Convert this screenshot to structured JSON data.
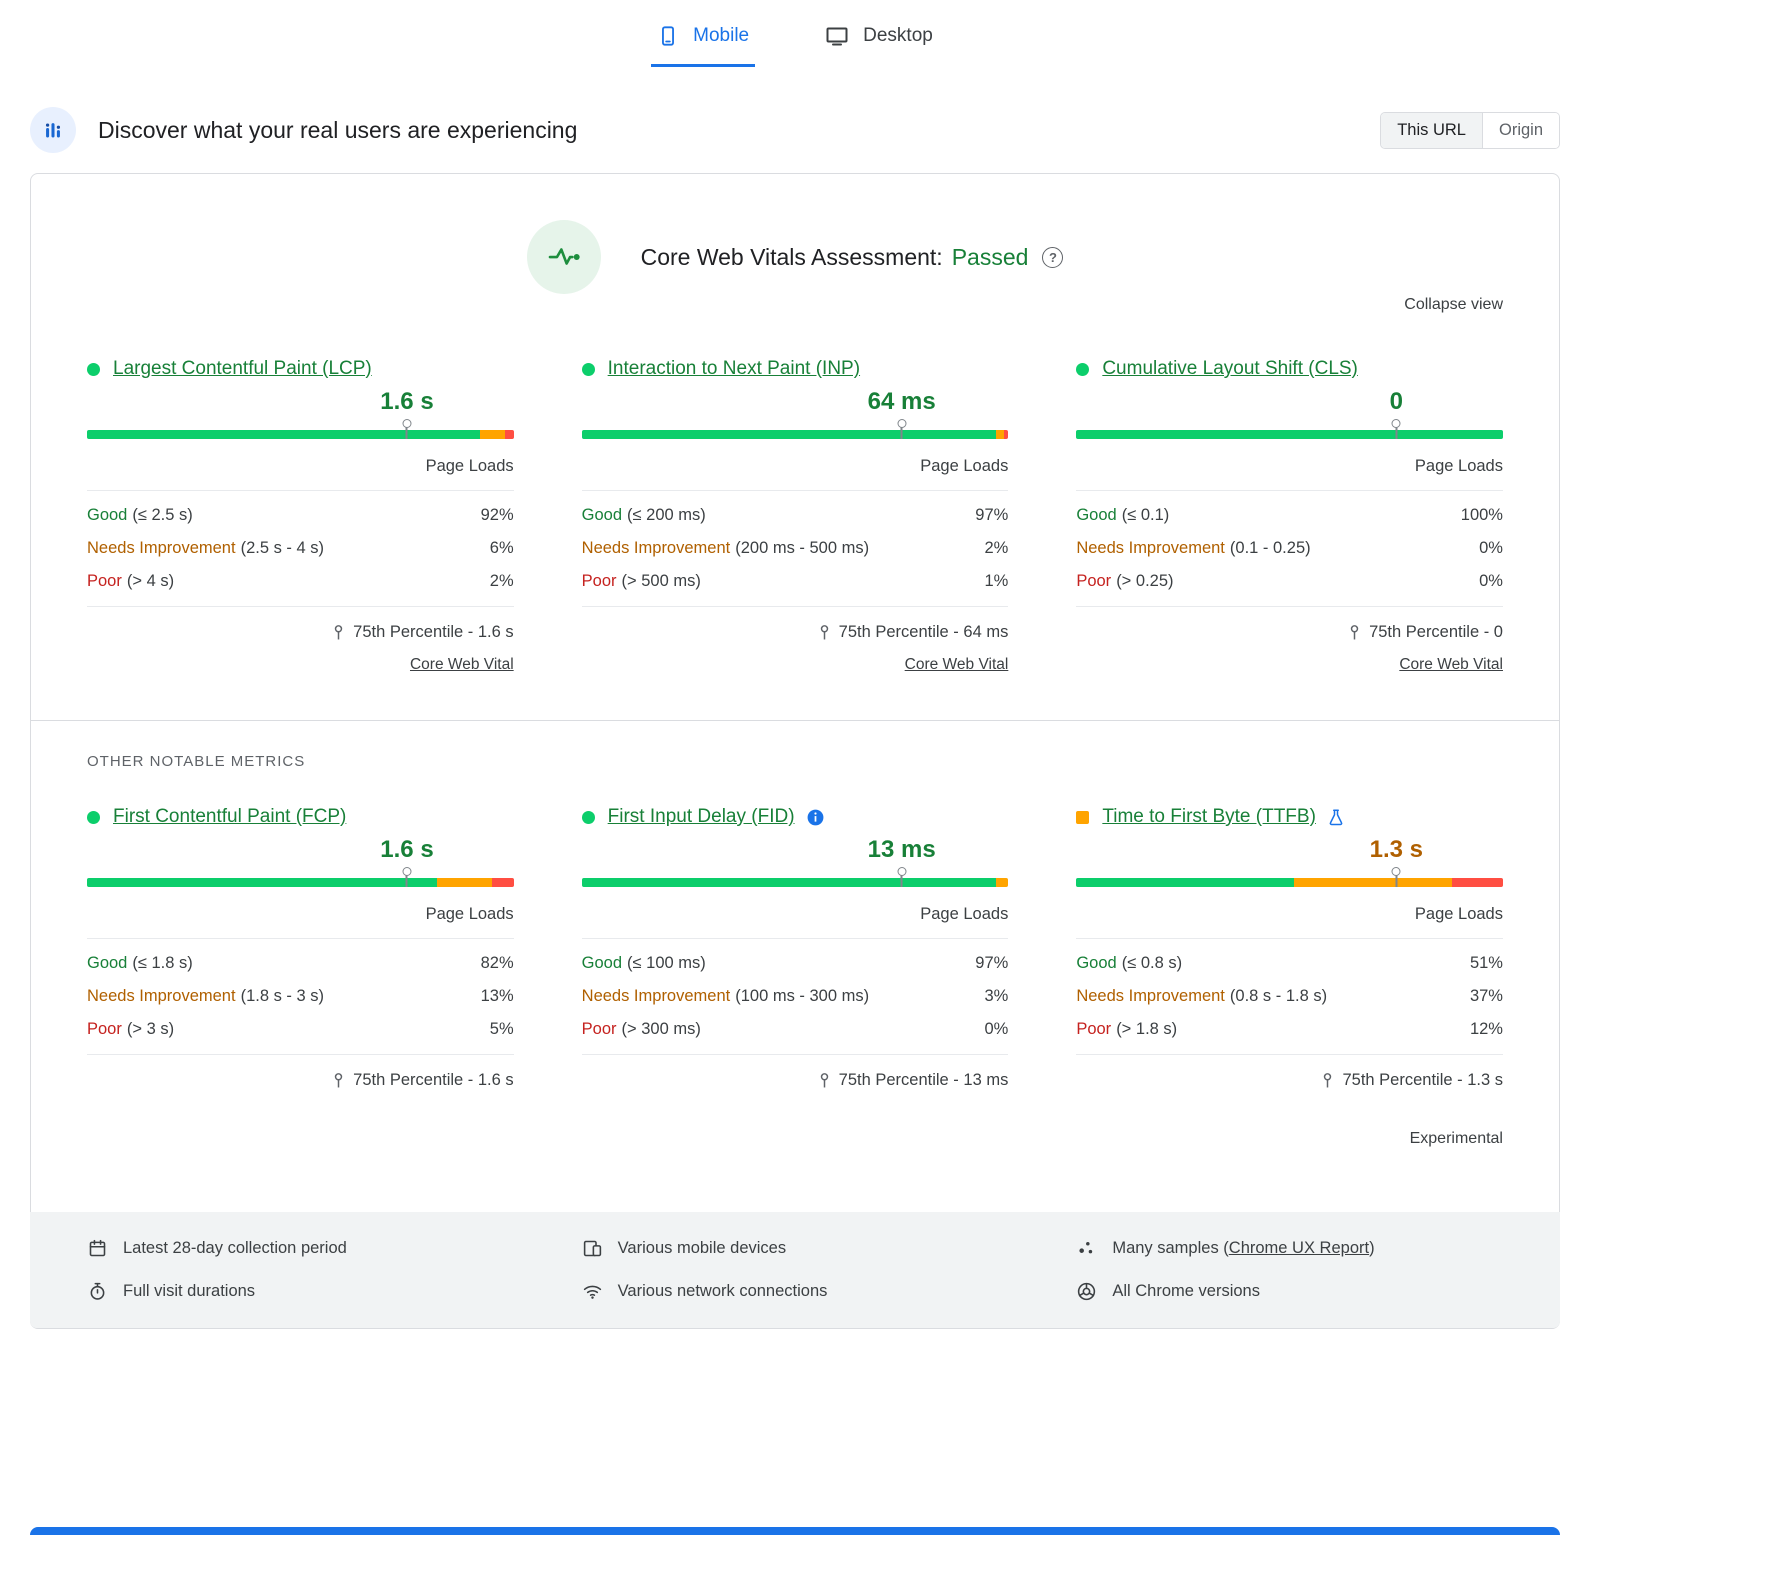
{
  "tabs": [
    {
      "label": "Mobile",
      "active": true
    },
    {
      "label": "Desktop",
      "active": false
    }
  ],
  "header": {
    "title": "Discover what your real users are experiencing",
    "scope_this_url": "This URL",
    "scope_origin": "Origin"
  },
  "assessment": {
    "title": "Core Web Vitals Assessment:",
    "status": "Passed",
    "collapse_label": "Collapse view",
    "section_label": "OTHER NOTABLE METRICS"
  },
  "shared": {
    "page_loads": "Page Loads",
    "core_web_vital": "Core Web Vital",
    "experimental": "Experimental"
  },
  "icons": {
    "help_glyph": "?"
  },
  "colors": {
    "accent_blue": "#1a73e8",
    "good_text": "#188038",
    "needs_improvement_text": "#b06000",
    "poor_text": "#c5221f",
    "bar_good": "#0cce6b",
    "bar_needs_improvement": "#ffa400",
    "bar_poor": "#ff4e42",
    "footer_background": "#f1f3f4"
  },
  "metrics": [
    {
      "title": "Largest Contentful Paint (LCP)",
      "bullet": "circle-green",
      "value": "1.6 s",
      "value_tone": "good",
      "distribution": {
        "good": 92,
        "needs_improvement": 6,
        "poor": 2
      },
      "rows": [
        {
          "label": "Good",
          "range": "(≤ 2.5 s)",
          "pct": "92%"
        },
        {
          "label": "Needs Improvement",
          "range": "(2.5 s - 4 s)",
          "pct": "6%"
        },
        {
          "label": "Poor",
          "range": "(> 4 s)",
          "pct": "2%"
        }
      ],
      "percentile": "75th Percentile - 1.6 s",
      "core_web_vital_link": true,
      "info_icon": false,
      "flask_icon": false,
      "experimental": false
    },
    {
      "title": "Interaction to Next Paint (INP)",
      "bullet": "circle-green",
      "value": "64 ms",
      "value_tone": "good",
      "distribution": {
        "good": 97,
        "needs_improvement": 2,
        "poor": 1
      },
      "rows": [
        {
          "label": "Good",
          "range": "(≤ 200 ms)",
          "pct": "97%"
        },
        {
          "label": "Needs Improvement",
          "range": "(200 ms - 500 ms)",
          "pct": "2%"
        },
        {
          "label": "Poor",
          "range": "(> 500 ms)",
          "pct": "1%"
        }
      ],
      "percentile": "75th Percentile - 64 ms",
      "core_web_vital_link": true,
      "info_icon": false,
      "flask_icon": false,
      "experimental": false
    },
    {
      "title": "Cumulative Layout Shift (CLS)",
      "bullet": "circle-green",
      "value": "0",
      "value_tone": "good",
      "distribution": {
        "good": 100,
        "needs_improvement": 0,
        "poor": 0
      },
      "rows": [
        {
          "label": "Good",
          "range": "(≤ 0.1)",
          "pct": "100%"
        },
        {
          "label": "Needs Improvement",
          "range": "(0.1 - 0.25)",
          "pct": "0%"
        },
        {
          "label": "Poor",
          "range": "(> 0.25)",
          "pct": "0%"
        }
      ],
      "percentile": "75th Percentile - 0",
      "core_web_vital_link": true,
      "info_icon": false,
      "flask_icon": false,
      "experimental": false
    },
    {
      "title": "First Contentful Paint (FCP)",
      "bullet": "circle-green",
      "value": "1.6 s",
      "value_tone": "good",
      "distribution": {
        "good": 82,
        "needs_improvement": 13,
        "poor": 5
      },
      "rows": [
        {
          "label": "Good",
          "range": "(≤ 1.8 s)",
          "pct": "82%"
        },
        {
          "label": "Needs Improvement",
          "range": "(1.8 s - 3 s)",
          "pct": "13%"
        },
        {
          "label": "Poor",
          "range": "(> 3 s)",
          "pct": "5%"
        }
      ],
      "percentile": "75th Percentile - 1.6 s",
      "core_web_vital_link": false,
      "info_icon": false,
      "flask_icon": false,
      "experimental": false
    },
    {
      "title": "First Input Delay (FID)",
      "bullet": "circle-green",
      "value": "13 ms",
      "value_tone": "good",
      "distribution": {
        "good": 97,
        "needs_improvement": 3,
        "poor": 0
      },
      "rows": [
        {
          "label": "Good",
          "range": "(≤ 100 ms)",
          "pct": "97%"
        },
        {
          "label": "Needs Improvement",
          "range": "(100 ms - 300 ms)",
          "pct": "3%"
        },
        {
          "label": "Poor",
          "range": "(> 300 ms)",
          "pct": "0%"
        }
      ],
      "percentile": "75th Percentile - 13 ms",
      "core_web_vital_link": false,
      "info_icon": true,
      "flask_icon": false,
      "experimental": false
    },
    {
      "title": "Time to First Byte (TTFB)",
      "bullet": "square-orange",
      "value": "1.3 s",
      "value_tone": "ni",
      "distribution": {
        "good": 51,
        "needs_improvement": 37,
        "poor": 12
      },
      "rows": [
        {
          "label": "Good",
          "range": "(≤ 0.8 s)",
          "pct": "51%"
        },
        {
          "label": "Needs Improvement",
          "range": "(0.8 s - 1.8 s)",
          "pct": "37%"
        },
        {
          "label": "Poor",
          "range": "(> 1.8 s)",
          "pct": "12%"
        }
      ],
      "percentile": "75th Percentile - 1.3 s",
      "core_web_vital_link": false,
      "info_icon": false,
      "flask_icon": true,
      "experimental": true
    }
  ],
  "footer": {
    "items": [
      {
        "icon": "calendar-icon",
        "text": "Latest 28-day collection period"
      },
      {
        "icon": "mobile-devices-icon",
        "text": "Various mobile devices"
      },
      {
        "icon": "samples-icon",
        "prefix": "Many samples (",
        "link": "Chrome UX Report",
        "suffix": ")"
      },
      {
        "icon": "stopwatch-icon",
        "text": "Full visit durations"
      },
      {
        "icon": "network-icon",
        "text": "Various network connections"
      },
      {
        "icon": "chrome-icon",
        "text": "All Chrome versions"
      }
    ]
  }
}
